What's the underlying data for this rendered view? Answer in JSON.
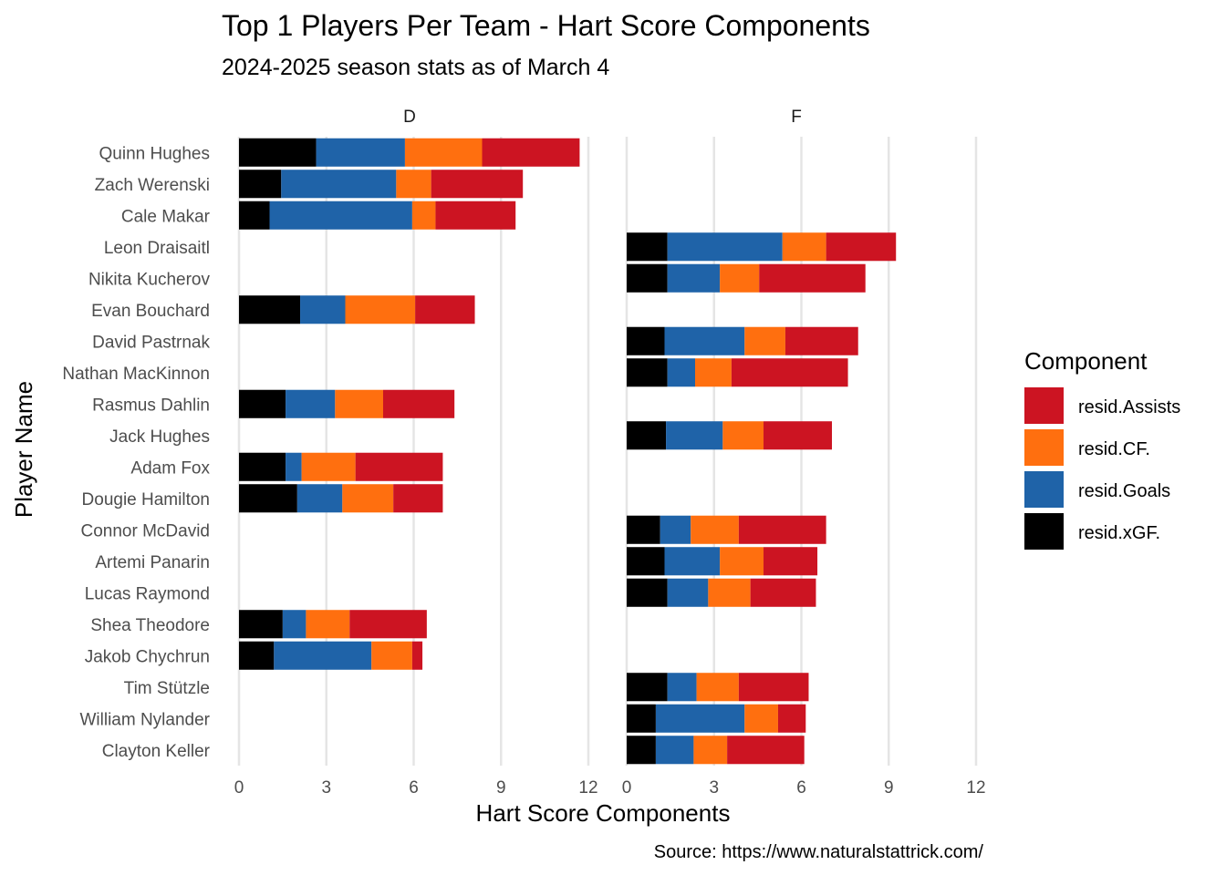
{
  "chart_data": {
    "type": "bar",
    "orientation": "horizontal",
    "stacked": true,
    "title": "Top 1 Players Per Team - Hart Score Components",
    "subtitle": "2024-2025 season stats as of March 4",
    "xlabel": "Hart Score Components",
    "ylabel": "Player Name",
    "caption": "Source: https://www.naturalstattrick.com/",
    "xlim": [
      0,
      12
    ],
    "xticks": [
      "0",
      "3",
      "6",
      "9",
      "12"
    ],
    "grid": true,
    "legend_title": "Component",
    "legend_position": "right",
    "facets": [
      "D",
      "F"
    ],
    "categories": [
      "Quinn Hughes",
      "Zach Werenski",
      "Cale Makar",
      "Leon Draisaitl",
      "Nikita Kucherov",
      "Evan Bouchard",
      "David Pastrnak",
      "Nathan MacKinnon",
      "Rasmus Dahlin",
      "Jack Hughes",
      "Adam Fox",
      "Dougie Hamilton",
      "Connor McDavid",
      "Artemi Panarin",
      "Lucas Raymond",
      "Shea Theodore",
      "Jakob Chychrun",
      "Tim Stützle",
      "William Nylander",
      "Clayton Keller"
    ],
    "facet_of": [
      "D",
      "D",
      "D",
      "F",
      "F",
      "D",
      "F",
      "F",
      "D",
      "F",
      "D",
      "D",
      "F",
      "F",
      "F",
      "D",
      "D",
      "F",
      "F",
      "F"
    ],
    "series": [
      {
        "name": "resid.xGF.",
        "color": "#000000",
        "values": [
          2.65,
          1.45,
          1.05,
          1.4,
          1.4,
          2.1,
          1.3,
          1.4,
          1.6,
          1.35,
          1.6,
          2.0,
          1.15,
          1.3,
          1.4,
          1.5,
          1.2,
          1.4,
          1.0,
          1.0
        ]
      },
      {
        "name": "resid.Goals",
        "color": "#1f63a8",
        "values": [
          3.05,
          3.95,
          4.9,
          3.95,
          1.8,
          1.55,
          2.75,
          0.95,
          1.7,
          1.95,
          0.55,
          1.55,
          1.05,
          1.9,
          1.4,
          0.8,
          3.35,
          1.0,
          3.05,
          1.3
        ]
      },
      {
        "name": "resid.CF.",
        "color": "#ff6f0f",
        "values": [
          2.65,
          1.2,
          0.8,
          1.5,
          1.35,
          2.4,
          1.4,
          1.25,
          1.65,
          1.4,
          1.85,
          1.75,
          1.65,
          1.5,
          1.45,
          1.5,
          1.4,
          1.45,
          1.15,
          1.15
        ]
      },
      {
        "name": "resid.Assists",
        "color": "#cc1422",
        "values": [
          3.35,
          3.15,
          2.75,
          2.4,
          3.65,
          2.05,
          2.5,
          4.0,
          2.45,
          2.35,
          3.0,
          1.7,
          3.0,
          1.85,
          2.25,
          2.65,
          0.35,
          2.4,
          0.95,
          2.65
        ]
      }
    ],
    "legend_order": [
      "resid.Assists",
      "resid.CF.",
      "resid.Goals",
      "resid.xGF."
    ]
  }
}
